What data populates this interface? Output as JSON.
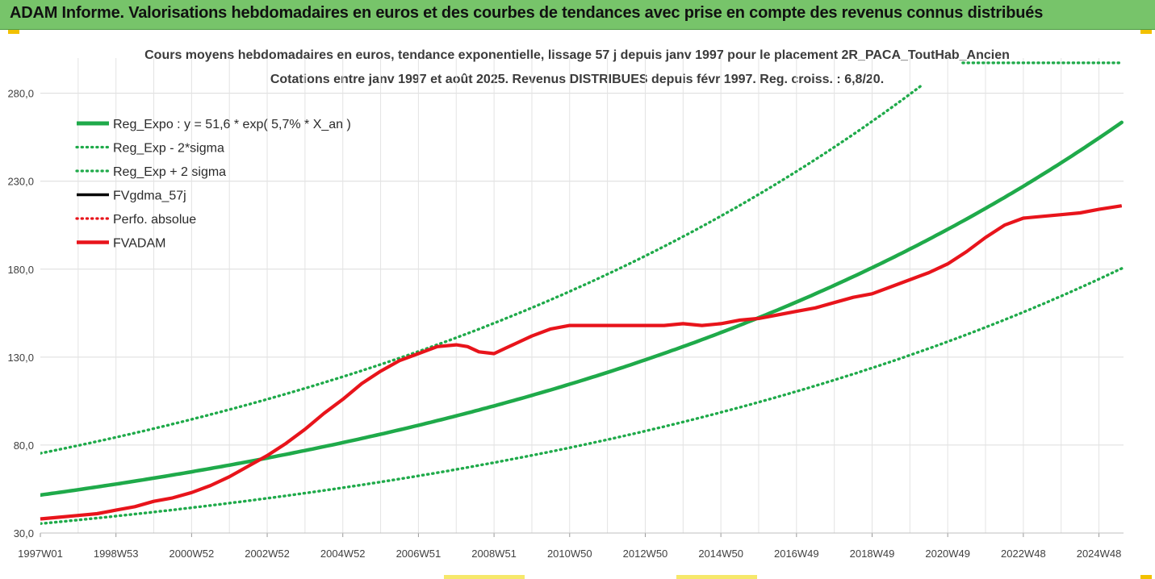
{
  "header": {
    "title": "ADAM Informe. Valorisations hebdomadaires en euros et des courbes de tendances avec prise en compte des revenus connus distribués"
  },
  "chart_data": {
    "type": "line",
    "title": "Cours moyens hebdomadaires en euros, tendance exponentielle, lissage 57 j depuis janv 1997 pour le placement 2R_PACA_ToutHab_Ancien",
    "subtitle": "Cotations entre janv 1997 et août 2025. Revenus DISTRIBUES depuis févr 1997. Reg. croiss. : 6,8/20.",
    "xlabel": "",
    "ylabel": "",
    "ylim": [
      30,
      300
    ],
    "xlim": [
      1997.0,
      2025.65
    ],
    "y_ticks": [
      "280,0",
      "230,0",
      "180,0",
      "130,0",
      "80,0",
      "30,0"
    ],
    "y_tick_values": [
      280,
      230,
      180,
      130,
      80,
      30
    ],
    "x_ticks": [
      "1997W01",
      "1998W53",
      "2000W52",
      "2002W52",
      "2004W52",
      "2006W51",
      "2008W51",
      "2010W50",
      "2012W50",
      "2014W50",
      "2016W49",
      "2018W49",
      "2020W49",
      "2022W48",
      "2024W48"
    ],
    "x_tick_values": [
      1997.0,
      1999.0,
      2001.0,
      2003.0,
      2005.0,
      2007.0,
      2009.0,
      2011.0,
      2013.0,
      2015.0,
      2017.0,
      2019.0,
      2021.0,
      2023.0,
      2025.0
    ],
    "grid": true,
    "legend_position": "top-left",
    "regression": {
      "a": 51.6,
      "rate": 0.057,
      "sigma_factor": 1.46
    },
    "series": [
      {
        "name": "Reg_Expo : y = 51,6 * exp( 5,7% *  X_an )",
        "color": "#1faa4a",
        "style": "solid",
        "kind": "reg"
      },
      {
        "name": "Reg_Exp - 2*sigma",
        "color": "#1faa4a",
        "style": "dotted",
        "kind": "reg_low"
      },
      {
        "name": "Reg_Exp + 2 sigma",
        "color": "#1faa4a",
        "style": "dotted",
        "kind": "reg_high"
      },
      {
        "name": "FVgdma_57j",
        "color": "#000000",
        "style": "solid",
        "kind": "data"
      },
      {
        "name": "Perfo. absolue",
        "color": "#e8141b",
        "style": "dotted",
        "kind": "data"
      },
      {
        "name": "FVADAM",
        "color": "#e8141b",
        "style": "solid",
        "kind": "data"
      }
    ],
    "fvadam": {
      "x": [
        1997.0,
        1997.5,
        1998.0,
        1998.5,
        1999.0,
        1999.5,
        2000.0,
        2000.5,
        2001.0,
        2001.5,
        2002.0,
        2002.5,
        2003.0,
        2003.5,
        2004.0,
        2004.5,
        2005.0,
        2005.5,
        2006.0,
        2006.5,
        2007.0,
        2007.5,
        2008.0,
        2008.3,
        2008.6,
        2009.0,
        2009.3,
        2009.6,
        2010.0,
        2010.5,
        2011.0,
        2011.5,
        2012.0,
        2012.5,
        2013.0,
        2013.5,
        2014.0,
        2014.5,
        2015.0,
        2015.5,
        2016.0,
        2016.5,
        2017.0,
        2017.5,
        2018.0,
        2018.5,
        2019.0,
        2019.5,
        2020.0,
        2020.5,
        2021.0,
        2021.5,
        2022.0,
        2022.5,
        2023.0,
        2023.5,
        2024.0,
        2024.5,
        2025.0,
        2025.6
      ],
      "y": [
        38,
        39,
        40,
        41,
        43,
        45,
        48,
        50,
        53,
        57,
        62,
        68,
        74,
        81,
        89,
        98,
        106,
        115,
        122,
        128,
        132,
        136,
        137,
        136,
        133,
        132,
        135,
        138,
        142,
        146,
        148,
        148,
        148,
        148,
        148,
        148,
        149,
        148,
        149,
        151,
        152,
        154,
        156,
        158,
        161,
        164,
        166,
        170,
        174,
        178,
        183,
        190,
        198,
        205,
        209,
        210,
        211,
        212,
        214,
        216
      ]
    }
  }
}
